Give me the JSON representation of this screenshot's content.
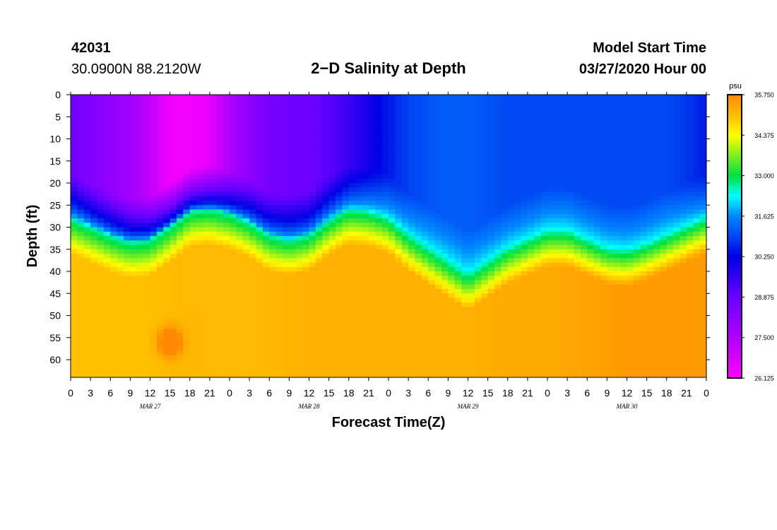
{
  "header": {
    "station_id": "42031",
    "coordinates": "30.0900N 88.2120W",
    "title": "2−D Salinity at Depth",
    "start_label": "Model Start Time",
    "start_value": "03/27/2020 Hour 00"
  },
  "chart_data": {
    "type": "heatmap",
    "title": "2−D Salinity at Depth",
    "xlabel": "Forecast Time(Z)",
    "ylabel": "Depth (ft)",
    "x_range_hours": [
      0,
      96
    ],
    "x_tick_step_hours": 3,
    "x_tick_labels": [
      "0",
      "3",
      "6",
      "9",
      "12",
      "15",
      "18",
      "21",
      "0",
      "3",
      "6",
      "9",
      "12",
      "15",
      "18",
      "21",
      "0",
      "3",
      "6",
      "9",
      "12",
      "15",
      "18",
      "21",
      "0",
      "3",
      "6",
      "9",
      "12",
      "15",
      "18",
      "21",
      "0"
    ],
    "date_labels": [
      {
        "label": "MAR 27",
        "hour": 12
      },
      {
        "label": "MAR 28",
        "hour": 36
      },
      {
        "label": "MAR 29",
        "hour": 60
      },
      {
        "label": "MAR 30",
        "hour": 84
      }
    ],
    "y_range_ft": [
      0,
      64
    ],
    "y_tick_values": [
      0,
      5,
      10,
      15,
      20,
      25,
      30,
      35,
      40,
      45,
      50,
      55,
      60
    ],
    "y_tick_labels": [
      "0",
      "5",
      "10",
      "15",
      "20",
      "25",
      "30",
      "35",
      "40",
      "45",
      "50",
      "55",
      "60"
    ],
    "colorbar": {
      "unit": "psu",
      "min": 26.125,
      "max": 35.75,
      "tick_labels": [
        "35.750",
        "34.375",
        "33.000",
        "31.625",
        "30.250",
        "28.875",
        "27.500",
        "26.125"
      ],
      "tick_values": [
        35.75,
        34.375,
        33.0,
        31.625,
        30.25,
        28.875,
        27.5,
        26.125
      ]
    },
    "colormap": [
      {
        "v": 26.125,
        "color": "#ff00ff"
      },
      {
        "v": 27.5,
        "color": "#b000ff"
      },
      {
        "v": 28.875,
        "color": "#6a00ff"
      },
      {
        "v": 30.25,
        "color": "#0000e6"
      },
      {
        "v": 31.625,
        "color": "#0088ff"
      },
      {
        "v": 32.3,
        "color": "#00ffff"
      },
      {
        "v": 33.0,
        "color": "#00e040"
      },
      {
        "v": 34.375,
        "color": "#ffff00"
      },
      {
        "v": 35.0,
        "color": "#ffc000"
      },
      {
        "v": 35.75,
        "color": "#ff8800"
      }
    ],
    "series": [
      {
        "name": "halocline_center_depth_ft",
        "x": [
          0,
          3,
          6,
          9,
          12,
          15,
          18,
          21,
          24,
          27,
          30,
          33,
          36,
          39,
          42,
          45,
          48,
          51,
          54,
          57,
          60,
          63,
          66,
          69,
          72,
          75,
          78,
          81,
          84,
          87,
          90,
          93,
          96
        ],
        "values": [
          28,
          30,
          32,
          33.5,
          33,
          30,
          26.5,
          26,
          27,
          29,
          32,
          33,
          32,
          28.5,
          26,
          26.5,
          28,
          32,
          35,
          38,
          41,
          38,
          35,
          33,
          31,
          31,
          33,
          35,
          35.5,
          34,
          32,
          30,
          28
        ]
      },
      {
        "name": "surface_salinity_psu",
        "x": [
          0,
          3,
          6,
          9,
          12,
          15,
          18,
          21,
          24,
          27,
          30,
          33,
          36,
          39,
          42,
          45,
          48,
          51,
          54,
          57,
          60,
          63,
          66,
          69,
          72,
          75,
          78,
          81,
          84,
          87,
          90,
          93,
          96
        ],
        "values": [
          28.8,
          28.4,
          28.1,
          27.8,
          27.2,
          26.4,
          26.3,
          26.6,
          27.5,
          28.2,
          28.6,
          28.8,
          28.8,
          29.1,
          29.5,
          30.0,
          30.5,
          30.9,
          31.1,
          31.2,
          31.2,
          31.1,
          31.0,
          31.0,
          31.0,
          31.0,
          31.0,
          31.0,
          31.0,
          31.0,
          31.0,
          30.8,
          30.5
        ]
      },
      {
        "name": "deep_salinity_psu",
        "x": [
          0,
          6,
          12,
          18,
          24,
          30,
          36,
          42,
          48,
          54,
          60,
          66,
          72,
          78,
          84,
          90,
          96
        ],
        "values": [
          35.0,
          35.0,
          35.0,
          35.1,
          35.1,
          35.1,
          35.2,
          35.2,
          35.2,
          35.2,
          35.2,
          35.3,
          35.3,
          35.4,
          35.5,
          35.5,
          35.5
        ]
      }
    ],
    "hotspot": {
      "hour": 15,
      "depth_ft": 56,
      "value": 35.75
    }
  }
}
